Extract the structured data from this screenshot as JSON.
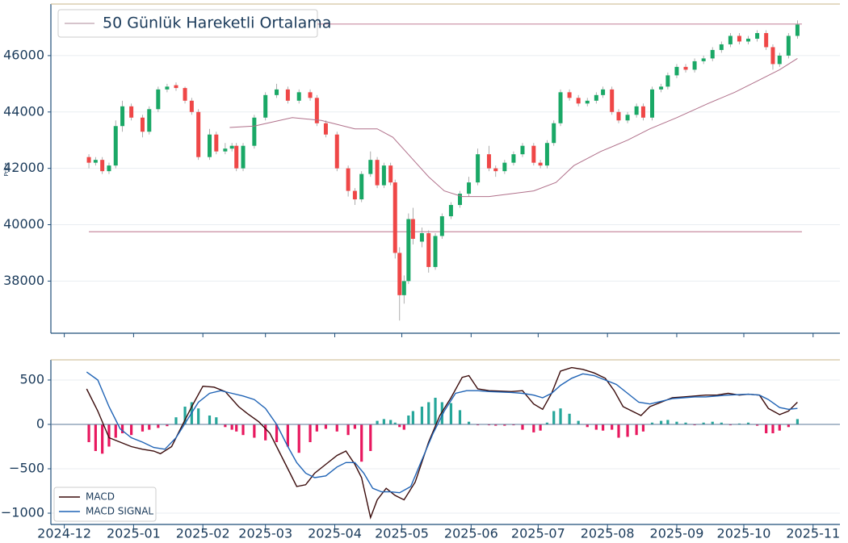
{
  "chart_data": [
    {
      "type": "candlestick",
      "y_label": "Price",
      "xlim": [
        -6,
        347
      ],
      "ylim": [
        36150,
        47830
      ],
      "yticks": [
        38000,
        40000,
        42000,
        44000,
        46000
      ],
      "grid": true,
      "up_color": "#1aa866",
      "down_color": "#ef4747",
      "x": [
        11,
        14,
        17,
        20,
        23,
        26,
        30,
        35,
        38,
        42,
        46,
        50,
        54,
        57,
        60,
        65,
        68,
        72,
        75,
        77,
        80,
        85,
        90,
        95,
        100,
        105,
        110,
        113,
        117,
        122,
        127,
        130,
        133,
        137,
        140,
        143,
        146,
        148,
        150,
        152,
        154,
        156,
        160,
        163,
        166,
        169,
        173,
        177,
        181,
        185,
        190,
        193,
        197,
        201,
        205,
        210,
        213,
        216,
        219,
        222,
        226,
        230,
        234,
        238,
        241,
        245,
        248,
        252,
        256,
        259,
        263,
        267,
        270,
        274,
        278,
        282,
        286,
        290,
        294,
        298,
        302,
        306,
        310,
        314,
        317,
        320,
        324,
        328
      ],
      "open": [
        42400,
        42200,
        42300,
        41900,
        42100,
        43500,
        44200,
        43800,
        43300,
        44100,
        44800,
        44950,
        44850,
        44400,
        44000,
        42400,
        43200,
        42600,
        42700,
        42800,
        42000,
        42800,
        43800,
        44600,
        44800,
        44400,
        44700,
        44500,
        43600,
        43200,
        42000,
        41200,
        40900,
        41800,
        42300,
        41400,
        42100,
        41500,
        39000,
        37500,
        38000,
        40200,
        39400,
        39700,
        38500,
        39600,
        40300,
        40700,
        41100,
        41500,
        42500,
        42000,
        41900,
        42200,
        42500,
        42800,
        42200,
        42100,
        42900,
        43600,
        44700,
        44500,
        44300,
        44400,
        44600,
        44800,
        44000,
        43700,
        43900,
        44200,
        43800,
        44800,
        44900,
        45300,
        45600,
        45500,
        45800,
        45900,
        46200,
        46400,
        46700,
        46500,
        46600,
        46800,
        46300,
        45700,
        46000,
        46700
      ],
      "high": [
        42500,
        42400,
        42400,
        42200,
        43700,
        44400,
        44300,
        43900,
        44200,
        44900,
        45000,
        45050,
        44900,
        44500,
        44100,
        43400,
        43300,
        42900,
        42900,
        42900,
        42900,
        43900,
        44700,
        45000,
        44900,
        44800,
        44800,
        44600,
        43700,
        43300,
        42100,
        41300,
        41900,
        42600,
        42400,
        42200,
        42200,
        41600,
        39200,
        38200,
        40400,
        40600,
        39900,
        39800,
        39700,
        40400,
        40800,
        41200,
        41700,
        42700,
        42800,
        42100,
        42300,
        42600,
        42900,
        42900,
        42300,
        43000,
        43700,
        44800,
        44800,
        44600,
        44500,
        44700,
        44900,
        44900,
        44100,
        44000,
        44300,
        44300,
        44900,
        45000,
        45400,
        45700,
        45700,
        45900,
        46000,
        46300,
        46500,
        46800,
        46800,
        46700,
        46900,
        46900,
        46400,
        46100,
        46800,
        47250
      ],
      "low": [
        42000,
        42100,
        41800,
        41800,
        42000,
        43300,
        43700,
        43100,
        43200,
        44000,
        44700,
        44750,
        44300,
        43900,
        42300,
        42300,
        42500,
        42500,
        42600,
        41900,
        41900,
        42700,
        43700,
        44500,
        44300,
        44300,
        44400,
        43500,
        43100,
        41900,
        41000,
        40700,
        40800,
        41700,
        41300,
        41300,
        41400,
        38800,
        36600,
        37200,
        37900,
        39300,
        39200,
        38300,
        38400,
        39500,
        40200,
        40600,
        41000,
        41400,
        41900,
        41700,
        41800,
        42100,
        42400,
        42100,
        42000,
        42000,
        42800,
        43500,
        44400,
        44200,
        44200,
        44300,
        44500,
        43900,
        43600,
        43600,
        43800,
        43700,
        43700,
        44700,
        44800,
        45200,
        45400,
        45400,
        45700,
        45800,
        46100,
        46300,
        46400,
        46400,
        46500,
        46200,
        45500,
        45600,
        45900,
        46600
      ],
      "close": [
        42200,
        42300,
        41900,
        42100,
        43500,
        44200,
        43800,
        43300,
        44100,
        44800,
        44900,
        44850,
        44400,
        44000,
        42400,
        43200,
        42600,
        42700,
        42800,
        42000,
        42800,
        43800,
        44600,
        44800,
        44400,
        44700,
        44500,
        43600,
        43200,
        42000,
        41200,
        40900,
        41800,
        42300,
        41400,
        42100,
        41500,
        39000,
        37500,
        38000,
        40200,
        39500,
        39700,
        38500,
        39600,
        40300,
        40700,
        41100,
        41500,
        42500,
        42000,
        41900,
        42200,
        42500,
        42800,
        42200,
        42100,
        42900,
        43600,
        44700,
        44500,
        44300,
        44400,
        44600,
        44800,
        44000,
        43700,
        43900,
        44200,
        43800,
        44800,
        44900,
        45300,
        45600,
        45500,
        45800,
        45900,
        46200,
        46400,
        46700,
        46500,
        46600,
        46800,
        46300,
        45700,
        46000,
        46700,
        47100
      ],
      "series": [
        {
          "name": "50 Günlük Hareketli Ortalama",
          "color": "#b0708a",
          "x": [
            74,
            85,
            102,
            115,
            130,
            140,
            147,
            155,
            163,
            170,
            178,
            190,
            200,
            210,
            220,
            228,
            240,
            252,
            262,
            274,
            288,
            300,
            310,
            320,
            328
          ],
          "values": [
            43450,
            43500,
            43800,
            43700,
            43400,
            43400,
            43100,
            42400,
            41700,
            41200,
            41000,
            41000,
            41100,
            41200,
            41500,
            42100,
            42600,
            43000,
            43400,
            43800,
            44300,
            44700,
            45100,
            45500,
            45900
          ]
        }
      ],
      "hlines": [
        {
          "value": 47120,
          "xrange": [
            113,
            330
          ]
        },
        {
          "value": 39750,
          "xrange": [
            11,
            330
          ]
        }
      ],
      "hline_color": "#c98ba0",
      "legend": "upper left"
    },
    {
      "type": "macd",
      "xlim": [
        -6,
        347
      ],
      "ylim": [
        -1127,
        727
      ],
      "yticks": [
        500,
        0,
        {
          "value": -500,
          "label": "−500"
        },
        {
          "value": -1000,
          "label": "−1000"
        }
      ],
      "grid": true,
      "xticks": [
        {
          "value": 0,
          "label": "2024-12"
        },
        {
          "value": 31,
          "label": "2025-01"
        },
        {
          "value": 62,
          "label": "2025-02"
        },
        {
          "value": 90,
          "label": "2025-03"
        },
        {
          "value": 121,
          "label": "2025-04"
        },
        {
          "value": 151,
          "label": "2025-05"
        },
        {
          "value": 182,
          "label": "2025-06"
        },
        {
          "value": 212,
          "label": "2025-07"
        },
        {
          "value": 243,
          "label": "2025-08"
        },
        {
          "value": 274,
          "label": "2025-09"
        },
        {
          "value": 304,
          "label": "2025-10"
        },
        {
          "value": 335,
          "label": "2025-11"
        }
      ],
      "series": [
        {
          "name": "MACD",
          "color": "#3a0b0b",
          "x": [
            10,
            15,
            20,
            25,
            30,
            35,
            40,
            43,
            48,
            52,
            57,
            62,
            67,
            72,
            78,
            82,
            87,
            92,
            96,
            100,
            104,
            108,
            112,
            117,
            122,
            126,
            130,
            133,
            137,
            140,
            144,
            148,
            152,
            157,
            163,
            168,
            173,
            178,
            181,
            185,
            190,
            200,
            205,
            210,
            214,
            218,
            222,
            227,
            232,
            237,
            242,
            246,
            250,
            254,
            258,
            262,
            267,
            272,
            277,
            282,
            287,
            292,
            297,
            302,
            306,
            311,
            315,
            320,
            324,
            328
          ],
          "values": [
            400,
            150,
            -150,
            -200,
            -250,
            -280,
            -300,
            -330,
            -250,
            -50,
            200,
            430,
            420,
            370,
            200,
            120,
            30,
            -100,
            -300,
            -500,
            -700,
            -680,
            -550,
            -450,
            -350,
            -300,
            -450,
            -600,
            -1050,
            -850,
            -720,
            -800,
            -850,
            -650,
            -200,
            100,
            300,
            530,
            550,
            400,
            380,
            370,
            380,
            230,
            170,
            350,
            600,
            640,
            620,
            580,
            520,
            380,
            200,
            150,
            100,
            200,
            250,
            300,
            310,
            320,
            330,
            330,
            350,
            330,
            340,
            330,
            180,
            110,
            150,
            250
          ]
        },
        {
          "name": "MACD SIGNAL",
          "color": "#1f63b5",
          "x": [
            10,
            15,
            20,
            25,
            30,
            35,
            40,
            45,
            50,
            55,
            60,
            65,
            70,
            75,
            80,
            85,
            90,
            95,
            100,
            104,
            108,
            112,
            117,
            122,
            126,
            130,
            134,
            138,
            142,
            146,
            150,
            155,
            160,
            165,
            170,
            175,
            180,
            185,
            190,
            200,
            205,
            210,
            214,
            218,
            222,
            227,
            232,
            237,
            242,
            247,
            252,
            257,
            262,
            267,
            272,
            277,
            282,
            287,
            292,
            297,
            302,
            306,
            311,
            315,
            320,
            324,
            328
          ],
          "values": [
            590,
            500,
            200,
            -50,
            -150,
            -200,
            -260,
            -280,
            -150,
            50,
            250,
            350,
            380,
            350,
            320,
            280,
            180,
            0,
            -250,
            -430,
            -550,
            -600,
            -580,
            -480,
            -430,
            -430,
            -550,
            -720,
            -760,
            -760,
            -770,
            -700,
            -400,
            -100,
            150,
            350,
            380,
            380,
            370,
            360,
            350,
            330,
            300,
            350,
            440,
            520,
            570,
            550,
            500,
            450,
            350,
            250,
            230,
            260,
            290,
            300,
            310,
            310,
            320,
            330,
            335,
            340,
            330,
            280,
            190,
            170,
            180
          ]
        }
      ],
      "histogram": {
        "pos_color": "#26a69a",
        "neg_color": "#e8185f",
        "x": [
          11,
          14,
          17,
          20,
          23,
          26,
          30,
          35,
          38,
          42,
          46,
          50,
          54,
          57,
          60,
          65,
          68,
          72,
          75,
          77,
          80,
          85,
          90,
          95,
          100,
          105,
          110,
          113,
          117,
          122,
          127,
          130,
          133,
          137,
          140,
          143,
          146,
          148,
          150,
          152,
          154,
          156,
          160,
          163,
          166,
          169,
          173,
          177,
          181,
          185,
          190,
          193,
          197,
          201,
          205,
          210,
          213,
          216,
          219,
          222,
          226,
          230,
          234,
          238,
          241,
          245,
          248,
          252,
          256,
          259,
          263,
          267,
          270,
          274,
          278,
          282,
          286,
          290,
          294,
          298,
          302,
          306,
          310,
          314,
          317,
          320,
          324,
          328
        ],
        "values": [
          -200,
          -300,
          -330,
          -250,
          -150,
          -100,
          -120,
          -80,
          -60,
          -40,
          -20,
          80,
          200,
          250,
          180,
          100,
          80,
          -30,
          -60,
          -80,
          -120,
          -150,
          -180,
          -200,
          -250,
          -320,
          -200,
          -80,
          -50,
          -80,
          -120,
          -50,
          -420,
          -300,
          40,
          60,
          50,
          20,
          -30,
          -60,
          100,
          150,
          200,
          250,
          300,
          250,
          240,
          160,
          30,
          -10,
          -10,
          -15,
          -15,
          -10,
          -60,
          -90,
          -70,
          20,
          150,
          180,
          120,
          40,
          -30,
          -60,
          -70,
          -60,
          -150,
          -140,
          -120,
          -80,
          20,
          40,
          50,
          30,
          20,
          -10,
          20,
          30,
          20,
          -10,
          10,
          20,
          -15,
          -100,
          -100,
          -70,
          -30,
          60
        ]
      },
      "legend": "lower left"
    }
  ]
}
